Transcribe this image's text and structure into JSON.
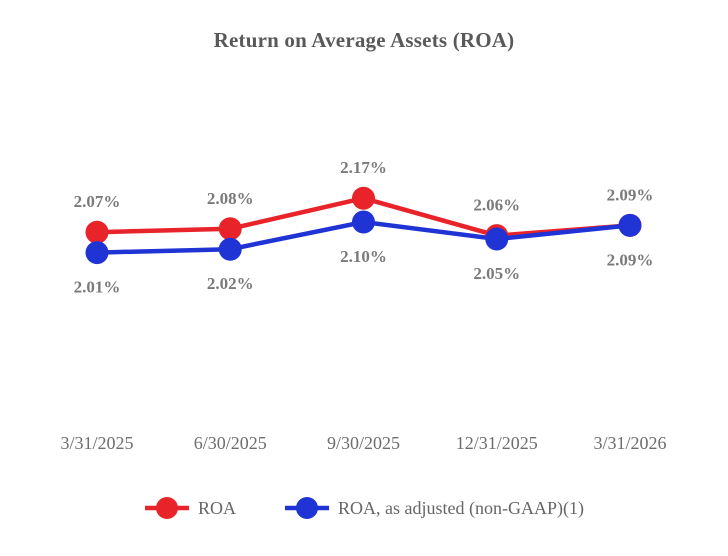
{
  "chart_data": {
    "type": "line",
    "title": "Return on Average Assets (ROA)",
    "categories": [
      "3/31/2025",
      "6/30/2025",
      "9/30/2025",
      "12/31/2025",
      "3/31/2026"
    ],
    "series": [
      {
        "name": "ROA",
        "color": "#e8242a",
        "values": [
          2.07,
          2.08,
          2.17,
          2.06,
          2.09
        ],
        "labels": [
          "2.07%",
          "2.08%",
          "2.17%",
          "2.06%",
          "2.09%"
        ],
        "label_position": "above"
      },
      {
        "name": "ROA, as adjusted (non-GAAP)(1)",
        "color": "#2033d5",
        "values": [
          2.01,
          2.02,
          2.1,
          2.05,
          2.09
        ],
        "labels": [
          "2.01%",
          "2.02%",
          "2.10%",
          "2.05%",
          "2.09%"
        ],
        "label_position": "below"
      }
    ],
    "ylim": [
      1.9,
      2.3
    ],
    "xlabel": "",
    "ylabel": "",
    "grid": false,
    "axes_visible": false,
    "legend_position": "bottom",
    "title_color": "#595959",
    "data_label_color": "#7a7a7a",
    "axis_label_color": "#6e6e6e",
    "legend_text_color": "#666666",
    "background_color": "#ffffff"
  }
}
